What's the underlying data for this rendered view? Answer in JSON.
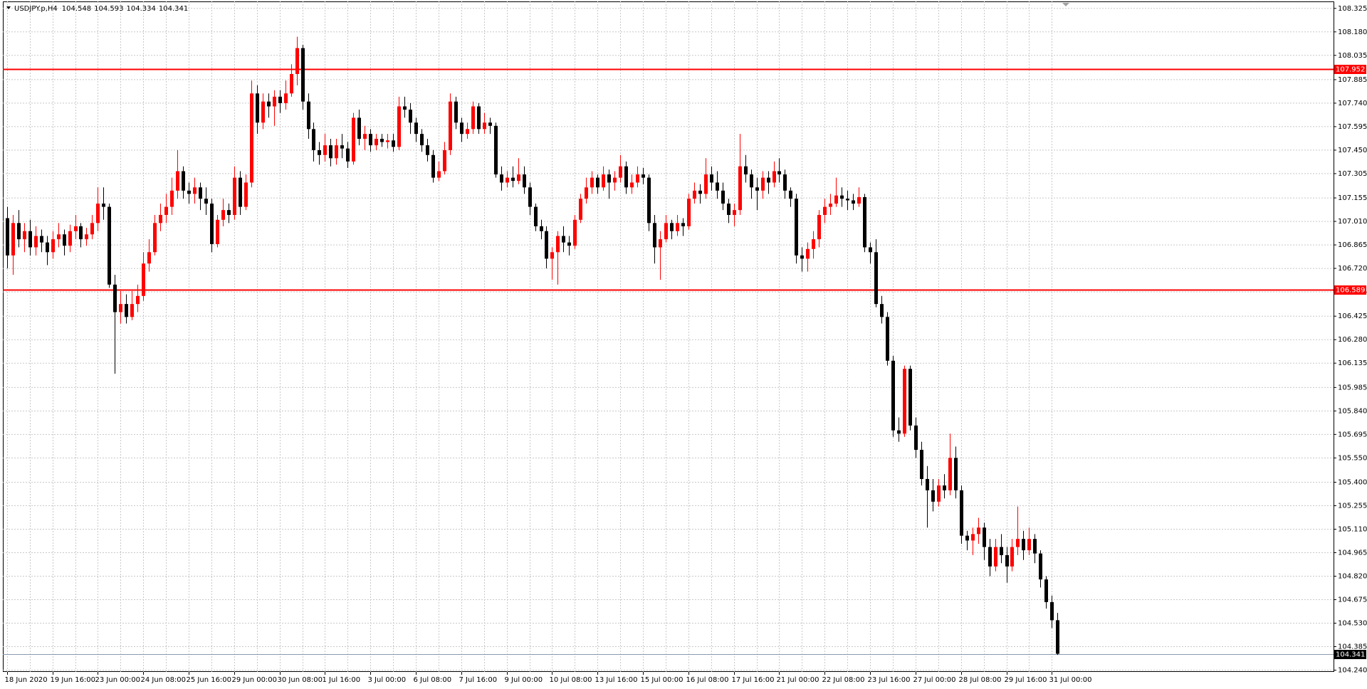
{
  "chart_data": {
    "type": "candlestick",
    "title": "USDJPY.p,H4",
    "up_color": "#ff0000",
    "down_color": "#000000",
    "grid": true,
    "ylim": [
      104.229,
      108.368
    ],
    "yticks": [
      108.325,
      {
        "value": 108.18,
        "label": "108.180"
      },
      108.035,
      107.885,
      {
        "value": 107.74,
        "label": "107.740"
      },
      107.595,
      {
        "value": 107.45,
        "label": "107.450"
      },
      107.305,
      107.155,
      {
        "value": 107.01,
        "label": "107.010"
      },
      106.865,
      {
        "value": 106.72,
        "label": "106.720"
      },
      106.575,
      106.425,
      {
        "value": 106.28,
        "label": "106.280"
      },
      106.135,
      105.985,
      {
        "value": 105.84,
        "label": "105.840"
      },
      105.695,
      {
        "value": 105.55,
        "label": "105.550"
      },
      {
        "value": 105.4,
        "label": "105.400"
      },
      105.255,
      {
        "value": 105.11,
        "label": "105.110"
      },
      104.965,
      {
        "value": 104.82,
        "label": "104.820"
      },
      104.675,
      {
        "value": 104.53,
        "label": "104.530"
      },
      104.385,
      {
        "value": 104.24,
        "label": "104.240"
      }
    ],
    "hlines": [
      {
        "value": 107.952,
        "color": "#ff0000"
      },
      {
        "value": 106.589,
        "color": "#ff0000"
      }
    ],
    "categories": [
      "18 Jun 2020",
      null,
      null,
      null,
      null,
      null,
      null,
      null,
      "19 Jun 16:00",
      null,
      null,
      null,
      null,
      null,
      null,
      null,
      "23 Jun 00:00",
      null,
      null,
      null,
      null,
      null,
      null,
      null,
      "24 Jun 08:00",
      null,
      null,
      null,
      null,
      null,
      null,
      null,
      "25 Jun 16:00",
      null,
      null,
      null,
      null,
      null,
      null,
      null,
      "29 Jun 00:00",
      null,
      null,
      null,
      null,
      null,
      null,
      null,
      "30 Jun 08:00",
      null,
      null,
      null,
      null,
      null,
      null,
      null,
      "1 Jul 16:00",
      null,
      null,
      null,
      null,
      null,
      null,
      null,
      "3 Jul 00:00",
      null,
      null,
      null,
      null,
      null,
      null,
      null,
      "6 Jul 08:00",
      null,
      null,
      null,
      null,
      null,
      null,
      null,
      "7 Jul 16:00",
      null,
      null,
      null,
      null,
      null,
      null,
      null,
      "9 Jul 00:00",
      null,
      null,
      null,
      null,
      null,
      null,
      null,
      "10 Jul 08:00",
      null,
      null,
      null,
      null,
      null,
      null,
      null,
      "13 Jul 16:00",
      null,
      null,
      null,
      null,
      null,
      null,
      null,
      "15 Jul 00:00",
      null,
      null,
      null,
      null,
      null,
      null,
      null,
      "16 Jul 08:00",
      null,
      null,
      null,
      null,
      null,
      null,
      null,
      "17 Jul 16:00",
      null,
      null,
      null,
      null,
      null,
      null,
      null,
      "21 Jul 00:00",
      null,
      null,
      null,
      null,
      null,
      null,
      null,
      "22 Jul 08:00",
      null,
      null,
      null,
      null,
      null,
      null,
      null,
      "23 Jul 16:00",
      null,
      null,
      null,
      null,
      null,
      null,
      null,
      "27 Jul 00:00",
      null,
      null,
      null,
      null,
      null,
      null,
      null,
      "28 Jul 08:00",
      null,
      null,
      null,
      null,
      null,
      null,
      null,
      "29 Jul 16:00",
      null,
      null,
      null,
      null,
      null,
      null,
      null,
      "31 Jul 00:00",
      null
    ],
    "ohlc": [
      [
        107.03,
        107.1,
        106.72,
        106.8
      ],
      [
        106.8,
        107.05,
        106.68,
        107.0
      ],
      [
        107.0,
        107.08,
        106.85,
        106.9
      ],
      [
        106.9,
        107.0,
        106.82,
        106.95
      ],
      [
        106.95,
        107.02,
        106.8,
        106.85
      ],
      [
        106.85,
        106.98,
        106.8,
        106.92
      ],
      [
        106.92,
        106.96,
        106.82,
        106.88
      ],
      [
        106.88,
        106.92,
        106.74,
        106.82
      ],
      [
        106.82,
        106.95,
        106.78,
        106.9
      ],
      [
        106.9,
        107.0,
        106.85,
        106.93
      ],
      [
        106.93,
        106.96,
        106.8,
        106.86
      ],
      [
        106.86,
        106.99,
        106.82,
        106.95
      ],
      [
        106.95,
        107.05,
        106.9,
        106.98
      ],
      [
        106.98,
        107.0,
        106.85,
        106.9
      ],
      [
        106.9,
        106.97,
        106.86,
        106.93
      ],
      [
        106.93,
        107.05,
        106.9,
        107.0
      ],
      [
        107.0,
        107.22,
        106.95,
        107.12
      ],
      [
        107.12,
        107.22,
        107.02,
        107.1
      ],
      [
        107.1,
        107.12,
        106.6,
        106.62
      ],
      [
        106.62,
        106.68,
        106.07,
        106.45
      ],
      [
        106.45,
        106.58,
        106.38,
        106.5
      ],
      [
        106.5,
        106.56,
        106.38,
        106.42
      ],
      [
        106.42,
        106.58,
        106.4,
        106.5
      ],
      [
        106.5,
        106.62,
        106.45,
        106.55
      ],
      [
        106.55,
        106.82,
        106.52,
        106.75
      ],
      [
        106.75,
        106.9,
        106.7,
        106.82
      ],
      [
        106.82,
        107.05,
        106.8,
        107.0
      ],
      [
        107.0,
        107.12,
        106.95,
        107.05
      ],
      [
        107.05,
        107.18,
        107.0,
        107.1
      ],
      [
        107.1,
        107.28,
        107.05,
        107.2
      ],
      [
        107.2,
        107.45,
        107.15,
        107.32
      ],
      [
        107.32,
        107.35,
        107.15,
        107.2
      ],
      [
        107.2,
        107.25,
        107.12,
        107.18
      ],
      [
        107.18,
        107.28,
        107.12,
        107.22
      ],
      [
        107.22,
        107.25,
        107.08,
        107.15
      ],
      [
        107.15,
        107.22,
        107.05,
        107.12
      ],
      [
        107.12,
        107.15,
        106.82,
        106.87
      ],
      [
        106.87,
        107.05,
        106.85,
        107.02
      ],
      [
        107.02,
        107.15,
        106.98,
        107.08
      ],
      [
        107.08,
        107.12,
        107.0,
        107.05
      ],
      [
        107.05,
        107.35,
        107.02,
        107.28
      ],
      [
        107.28,
        107.32,
        107.05,
        107.1
      ],
      [
        107.1,
        107.3,
        107.08,
        107.25
      ],
      [
        107.25,
        107.88,
        107.22,
        107.8
      ],
      [
        107.8,
        107.85,
        107.55,
        107.62
      ],
      [
        107.62,
        107.8,
        107.58,
        107.75
      ],
      [
        107.75,
        107.8,
        107.65,
        107.72
      ],
      [
        107.72,
        107.82,
        107.6,
        107.78
      ],
      [
        107.78,
        107.82,
        107.68,
        107.74
      ],
      [
        107.74,
        107.88,
        107.7,
        107.8
      ],
      [
        107.8,
        107.98,
        107.78,
        107.92
      ],
      [
        107.92,
        108.15,
        107.85,
        108.08
      ],
      [
        108.08,
        108.1,
        107.7,
        107.75
      ],
      [
        107.75,
        107.8,
        107.52,
        107.58
      ],
      [
        107.58,
        107.62,
        107.38,
        107.45
      ],
      [
        107.45,
        107.5,
        107.36,
        107.42
      ],
      [
        107.42,
        107.55,
        107.38,
        107.48
      ],
      [
        107.48,
        107.52,
        107.35,
        107.4
      ],
      [
        107.4,
        107.52,
        107.36,
        107.48
      ],
      [
        107.48,
        107.55,
        107.4,
        107.46
      ],
      [
        107.46,
        107.5,
        107.34,
        107.38
      ],
      [
        107.38,
        107.68,
        107.36,
        107.65
      ],
      [
        107.65,
        107.7,
        107.48,
        107.52
      ],
      [
        107.52,
        107.6,
        107.45,
        107.55
      ],
      [
        107.55,
        107.58,
        107.44,
        107.48
      ],
      [
        107.48,
        107.55,
        107.45,
        107.52
      ],
      [
        107.52,
        107.55,
        107.47,
        107.5
      ],
      [
        107.5,
        107.55,
        107.46,
        107.51
      ],
      [
        107.51,
        107.55,
        107.44,
        107.47
      ],
      [
        107.47,
        107.78,
        107.45,
        107.72
      ],
      [
        107.72,
        107.78,
        107.65,
        107.7
      ],
      [
        107.7,
        107.74,
        107.55,
        107.62
      ],
      [
        107.62,
        107.65,
        107.5,
        107.55
      ],
      [
        107.55,
        107.58,
        107.44,
        107.48
      ],
      [
        107.48,
        107.52,
        107.38,
        107.42
      ],
      [
        107.42,
        107.45,
        107.25,
        107.28
      ],
      [
        107.28,
        107.38,
        107.26,
        107.32
      ],
      [
        107.32,
        107.5,
        107.3,
        107.45
      ],
      [
        107.45,
        107.8,
        107.42,
        107.75
      ],
      [
        107.75,
        107.78,
        107.58,
        107.62
      ],
      [
        107.62,
        107.65,
        107.5,
        107.55
      ],
      [
        107.55,
        107.62,
        107.52,
        107.58
      ],
      [
        107.58,
        107.75,
        107.55,
        107.72
      ],
      [
        107.72,
        107.74,
        107.55,
        107.58
      ],
      [
        107.58,
        107.68,
        107.55,
        107.62
      ],
      [
        107.62,
        107.65,
        107.55,
        107.6
      ],
      [
        107.6,
        107.62,
        107.28,
        107.3
      ],
      [
        107.3,
        107.35,
        107.2,
        107.25
      ],
      [
        107.25,
        107.32,
        107.22,
        107.28
      ],
      [
        107.28,
        107.35,
        107.22,
        107.26
      ],
      [
        107.26,
        107.4,
        107.24,
        107.3
      ],
      [
        107.3,
        107.35,
        107.18,
        107.22
      ],
      [
        107.22,
        107.25,
        107.05,
        107.1
      ],
      [
        107.1,
        107.12,
        106.95,
        106.98
      ],
      [
        106.98,
        107.02,
        106.9,
        106.95
      ],
      [
        106.95,
        106.98,
        106.72,
        106.78
      ],
      [
        106.78,
        106.85,
        106.65,
        106.82
      ],
      [
        106.82,
        106.95,
        106.62,
        106.92
      ],
      [
        106.92,
        106.98,
        106.82,
        106.88
      ],
      [
        106.88,
        106.92,
        106.8,
        106.86
      ],
      [
        106.86,
        107.05,
        106.84,
        107.02
      ],
      [
        107.02,
        107.18,
        107.0,
        107.15
      ],
      [
        107.15,
        107.28,
        107.12,
        107.22
      ],
      [
        107.22,
        107.32,
        107.18,
        107.28
      ],
      [
        107.28,
        107.3,
        107.18,
        107.22
      ],
      [
        107.22,
        107.35,
        107.2,
        107.3
      ],
      [
        107.3,
        107.33,
        107.15,
        107.25
      ],
      [
        107.25,
        107.32,
        107.2,
        107.28
      ],
      [
        107.28,
        107.42,
        107.25,
        107.35
      ],
      [
        107.35,
        107.38,
        107.18,
        107.22
      ],
      [
        107.22,
        107.3,
        107.18,
        107.25
      ],
      [
        107.25,
        107.35,
        107.22,
        107.3
      ],
      [
        107.3,
        107.34,
        107.24,
        107.28
      ],
      [
        107.28,
        107.3,
        106.95,
        107.0
      ],
      [
        107.0,
        107.05,
        106.75,
        106.85
      ],
      [
        106.85,
        106.95,
        106.65,
        106.9
      ],
      [
        106.9,
        107.05,
        106.88,
        107.0
      ],
      [
        107.0,
        107.02,
        106.9,
        106.95
      ],
      [
        106.95,
        107.05,
        106.92,
        107.0
      ],
      [
        107.0,
        107.03,
        106.92,
        106.98
      ],
      [
        106.98,
        107.18,
        106.96,
        107.15
      ],
      [
        107.15,
        107.25,
        107.12,
        107.2
      ],
      [
        107.2,
        107.24,
        107.12,
        107.18
      ],
      [
        107.18,
        107.4,
        107.15,
        107.3
      ],
      [
        107.3,
        107.35,
        107.2,
        107.25
      ],
      [
        107.25,
        107.32,
        107.15,
        107.2
      ],
      [
        107.2,
        107.25,
        107.08,
        107.12
      ],
      [
        107.12,
        107.15,
        107.0,
        107.05
      ],
      [
        107.05,
        107.12,
        106.98,
        107.08
      ],
      [
        107.08,
        107.55,
        107.05,
        107.35
      ],
      [
        107.35,
        107.42,
        107.25,
        107.3
      ],
      [
        107.3,
        107.33,
        107.15,
        107.22
      ],
      [
        107.22,
        107.28,
        107.08,
        107.2
      ],
      [
        107.2,
        107.32,
        107.15,
        107.28
      ],
      [
        107.28,
        107.32,
        107.18,
        107.25
      ],
      [
        107.25,
        107.38,
        107.22,
        107.32
      ],
      [
        107.32,
        107.4,
        107.25,
        107.3
      ],
      [
        107.3,
        107.33,
        107.15,
        107.2
      ],
      [
        107.2,
        107.22,
        107.1,
        107.15
      ],
      [
        107.15,
        107.18,
        106.75,
        106.8
      ],
      [
        106.8,
        106.85,
        106.7,
        106.78
      ],
      [
        106.78,
        106.88,
        106.7,
        106.84
      ],
      [
        106.84,
        106.95,
        106.78,
        106.9
      ],
      [
        106.9,
        107.08,
        106.85,
        107.05
      ],
      [
        107.05,
        107.15,
        107.0,
        107.1
      ],
      [
        107.1,
        107.18,
        107.05,
        107.12
      ],
      [
        107.12,
        107.28,
        107.1,
        107.17
      ],
      [
        107.17,
        107.22,
        107.1,
        107.15
      ],
      [
        107.15,
        107.2,
        107.08,
        107.14
      ],
      [
        107.14,
        107.18,
        107.08,
        107.12
      ],
      [
        107.12,
        107.22,
        107.1,
        107.16
      ],
      [
        107.16,
        107.18,
        106.82,
        106.85
      ],
      [
        106.85,
        106.88,
        106.75,
        106.82
      ],
      [
        106.82,
        106.9,
        106.48,
        106.5
      ],
      [
        106.5,
        106.55,
        106.38,
        106.42
      ],
      [
        106.42,
        106.45,
        106.12,
        106.15
      ],
      [
        106.15,
        106.18,
        105.68,
        105.72
      ],
      [
        105.72,
        105.8,
        105.65,
        105.7
      ],
      [
        105.7,
        106.12,
        105.68,
        106.1
      ],
      [
        106.1,
        106.12,
        105.72,
        105.75
      ],
      [
        105.75,
        105.8,
        105.55,
        105.6
      ],
      [
        105.6,
        105.65,
        105.38,
        105.42
      ],
      [
        105.42,
        105.5,
        105.12,
        105.35
      ],
      [
        105.35,
        105.42,
        105.22,
        105.28
      ],
      [
        105.28,
        105.42,
        105.25,
        105.38
      ],
      [
        105.38,
        105.45,
        105.3,
        105.35
      ],
      [
        105.35,
        105.7,
        105.32,
        105.55
      ],
      [
        105.55,
        105.62,
        105.3,
        105.35
      ],
      [
        105.35,
        105.38,
        105.02,
        105.07
      ],
      [
        105.07,
        105.1,
        104.98,
        105.04
      ],
      [
        105.04,
        105.12,
        104.95,
        105.08
      ],
      [
        105.08,
        105.18,
        105.02,
        105.12
      ],
      [
        105.12,
        105.15,
        104.92,
        105.0
      ],
      [
        105.0,
        105.05,
        104.82,
        104.88
      ],
      [
        104.88,
        105.05,
        104.85,
        105.0
      ],
      [
        105.0,
        105.08,
        104.9,
        104.95
      ],
      [
        104.95,
        105.0,
        104.78,
        104.88
      ],
      [
        104.88,
        105.05,
        104.85,
        105.0
      ],
      [
        105.0,
        105.25,
        104.95,
        105.05
      ],
      [
        105.05,
        105.1,
        104.92,
        104.98
      ],
      [
        104.98,
        105.12,
        104.95,
        105.05
      ],
      [
        105.05,
        105.08,
        104.9,
        104.96
      ],
      [
        104.96,
        104.98,
        104.75,
        104.8
      ],
      [
        104.8,
        104.82,
        104.62,
        104.66
      ],
      [
        104.66,
        104.7,
        104.5,
        104.548
      ],
      [
        104.548,
        104.593,
        104.334,
        104.341
      ]
    ]
  }
}
